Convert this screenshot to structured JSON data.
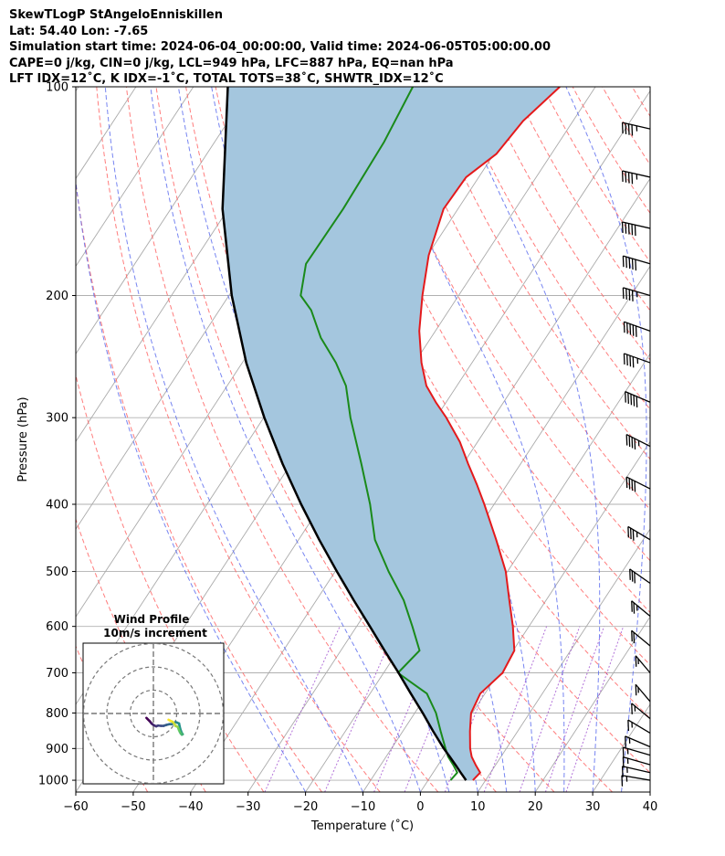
{
  "header": {
    "line1": "SkewTLogP StAngeloEnniskillen",
    "line2": "Lat: 54.40   Lon: -7.65",
    "line3": "Simulation start time: 2024-06-04_00:00:00, Valid time: 2024-06-05T05:00:00.00",
    "line4": "CAPE=0 j/kg, CIN=0 j/kg, LCL=949 hPa, LFC=887 hPa, EQ=nan hPa",
    "line5": "LFT IDX=12˚C, K IDX=-1˚C, TOTAL TOTS=38˚C, SHWTR_IDX=12˚C"
  },
  "colors": {
    "temperature": "#e41a1c",
    "dewpoint": "#1a8a1a",
    "parcel": "#000000",
    "fill": "#a4c6de",
    "dry_adiabat": "#ff6666",
    "moist_adiabat": "#5566ee",
    "mixing_ratio": "#9944cc",
    "isotherm": "#aaaaaa"
  },
  "chart_data": [
    {
      "type": "line",
      "subtype": "skew-t log-p",
      "xlabel": "Temperature ($^\\circ$C)",
      "xlabel_display": "Temperature (˚C)",
      "ylabel": "Pressure (hPa)",
      "xlim": [
        -60,
        40
      ],
      "ylim": [
        1040,
        100
      ],
      "x_ticks": [
        -60,
        -50,
        -40,
        -30,
        -20,
        -10,
        0,
        10,
        20,
        30,
        40
      ],
      "y_ticks": [
        1000,
        900,
        800,
        700,
        600,
        500,
        400,
        300,
        200,
        100
      ],
      "skew": 30,
      "grid": true,
      "series": [
        {
          "name": "temperature",
          "pressure": [
            1000,
            975,
            950,
            925,
            900,
            850,
            800,
            750,
            700,
            650,
            600,
            550,
            500,
            450,
            400,
            375,
            350,
            325,
            300,
            285,
            270,
            250,
            225,
            200,
            175,
            150,
            135,
            125,
            112,
            100
          ],
          "values": [
            7.8,
            8.2,
            6.5,
            4.9,
            3.7,
            1.7,
            -0.2,
            -0.8,
            0.7,
            0.2,
            -2.8,
            -6.4,
            -10.3,
            -15.6,
            -21.7,
            -25.2,
            -29.1,
            -33.1,
            -38.2,
            -41.8,
            -45.3,
            -48.8,
            -52.8,
            -56.3,
            -59.8,
            -62.5,
            -62.2,
            -59.6,
            -58.7,
            -56.2
          ]
        },
        {
          "name": "dewpoint",
          "pressure": [
            1000,
            975,
            950,
            925,
            900,
            850,
            800,
            750,
            720,
            700,
            650,
            600,
            550,
            500,
            450,
            400,
            350,
            300,
            270,
            250,
            230,
            210,
            200,
            180,
            150,
            120,
            100
          ],
          "values": [
            3.9,
            4.2,
            2.6,
            0.8,
            -0.6,
            -3.4,
            -6.3,
            -10.1,
            -14.5,
            -17.5,
            -16.3,
            -20.3,
            -24.8,
            -30.7,
            -36.7,
            -41.6,
            -47.7,
            -54.9,
            -59.3,
            -63.7,
            -69.2,
            -74.0,
            -77.5,
            -80.2,
            -80.0,
            -80.5,
            -81.8
          ]
        },
        {
          "name": "parcel",
          "pressure": [
            1000,
            975,
            950,
            925,
            900,
            850,
            800,
            750,
            700,
            650,
            600,
            550,
            500,
            450,
            400,
            350,
            300,
            250,
            200,
            150,
            100
          ],
          "values": [
            6.6,
            4.8,
            3.0,
            1.1,
            -0.9,
            -4.7,
            -8.6,
            -12.9,
            -17.4,
            -22.4,
            -27.7,
            -33.5,
            -39.7,
            -46.4,
            -53.6,
            -61.4,
            -69.9,
            -79.3,
            -89.5,
            -101.0,
            -114.0
          ]
        }
      ],
      "wind_barbs": [
        {
          "p": 115,
          "speed": 45,
          "dir": 285
        },
        {
          "p": 135,
          "speed": 45,
          "dir": 285
        },
        {
          "p": 160,
          "speed": 50,
          "dir": 285
        },
        {
          "p": 180,
          "speed": 50,
          "dir": 290
        },
        {
          "p": 200,
          "speed": 45,
          "dir": 290
        },
        {
          "p": 225,
          "speed": 50,
          "dir": 295
        },
        {
          "p": 250,
          "speed": 45,
          "dir": 295
        },
        {
          "p": 285,
          "speed": 50,
          "dir": 300
        },
        {
          "p": 330,
          "speed": 45,
          "dir": 305
        },
        {
          "p": 380,
          "speed": 40,
          "dir": 305
        },
        {
          "p": 450,
          "speed": 35,
          "dir": 310
        },
        {
          "p": 520,
          "speed": 30,
          "dir": 315
        },
        {
          "p": 580,
          "speed": 25,
          "dir": 320
        },
        {
          "p": 640,
          "speed": 20,
          "dir": 320
        },
        {
          "p": 700,
          "speed": 15,
          "dir": 330
        },
        {
          "p": 770,
          "speed": 15,
          "dir": 330
        },
        {
          "p": 815,
          "speed": 15,
          "dir": 320
        },
        {
          "p": 855,
          "speed": 15,
          "dir": 310
        },
        {
          "p": 895,
          "speed": 15,
          "dir": 300
        },
        {
          "p": 920,
          "speed": 15,
          "dir": 290
        },
        {
          "p": 950,
          "speed": 15,
          "dir": 290
        },
        {
          "p": 975,
          "speed": 15,
          "dir": 285
        },
        {
          "p": 1000,
          "speed": 15,
          "dir": 280
        }
      ]
    },
    {
      "type": "line",
      "subtype": "hodograph",
      "title_line1": "Wind Profile",
      "title_line2": "10m/s increment",
      "rings": [
        10,
        20,
        30
      ],
      "u": [
        -3.0,
        -1.5,
        -0.8,
        0.1,
        1.2,
        2.0,
        3.2,
        4.4,
        5.6,
        6.8,
        7.9,
        9.6,
        10.1,
        11.0,
        11.5,
        12.2,
        12.6,
        12.2,
        11.7,
        11.3,
        10.9,
        10.5,
        10.0,
        9.5,
        9.1,
        8.3,
        7.4,
        6.5
      ],
      "v": [
        -1.9,
        -3.4,
        -4.3,
        -5.0,
        -5.5,
        -5.2,
        -5.3,
        -5.3,
        -4.9,
        -4.6,
        -4.6,
        -3.7,
        -3.9,
        -4.3,
        -6.5,
        -8.4,
        -8.9,
        -9.1,
        -8.5,
        -7.8,
        -6.9,
        -5.8,
        -5.5,
        -5.4,
        -4.6,
        -3.6,
        -3.2,
        -2.7
      ]
    }
  ]
}
